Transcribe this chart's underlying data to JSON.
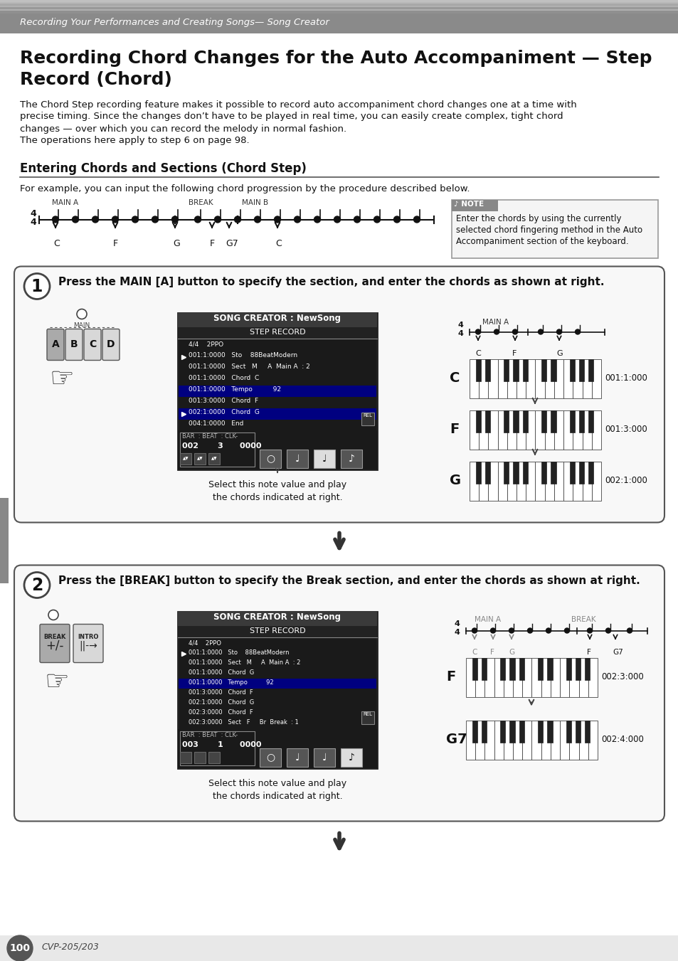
{
  "bg_color": "#ffffff",
  "header_text": "Recording Your Performances and Creating Songs— Song Creator",
  "title_line1": "Recording Chord Changes for the Auto Accompaniment — Step",
  "title_line2": "Record (Chord)",
  "body_text1": "The Chord Step recording feature makes it possible to record auto accompaniment chord changes one at a time with\nprecise timing. Since the changes don’t have to be played in real time, you can easily create complex, tight chord\nchanges — over which you can record the melody in normal fashion.\nThe operations here apply to step 6 on page 98.",
  "section_title": "Entering Chords and Sections (Chord Step)",
  "section_desc": "For example, you can input the following chord progression by the procedure described below.",
  "note_text": "Enter the chords by using the currently\nselected chord fingering method in the Auto\nAccompaniment section of the keyboard.",
  "step1_title": "Press the MAIN [A] button to specify the section, and enter the chords as shown at right.",
  "step2_title": "Press the [BREAK] button to specify the Break section, and enter the chords as shown at right.",
  "step1_caption": "Select this note value and play\nthe chords indicated at right.",
  "step2_caption": "Select this note value and play\nthe chords indicated at right.",
  "page_num": "100",
  "model": "CVP-205/203",
  "screen_title": "SONG CREATOR : NewSong",
  "screen_sub": "STEP RECORD"
}
